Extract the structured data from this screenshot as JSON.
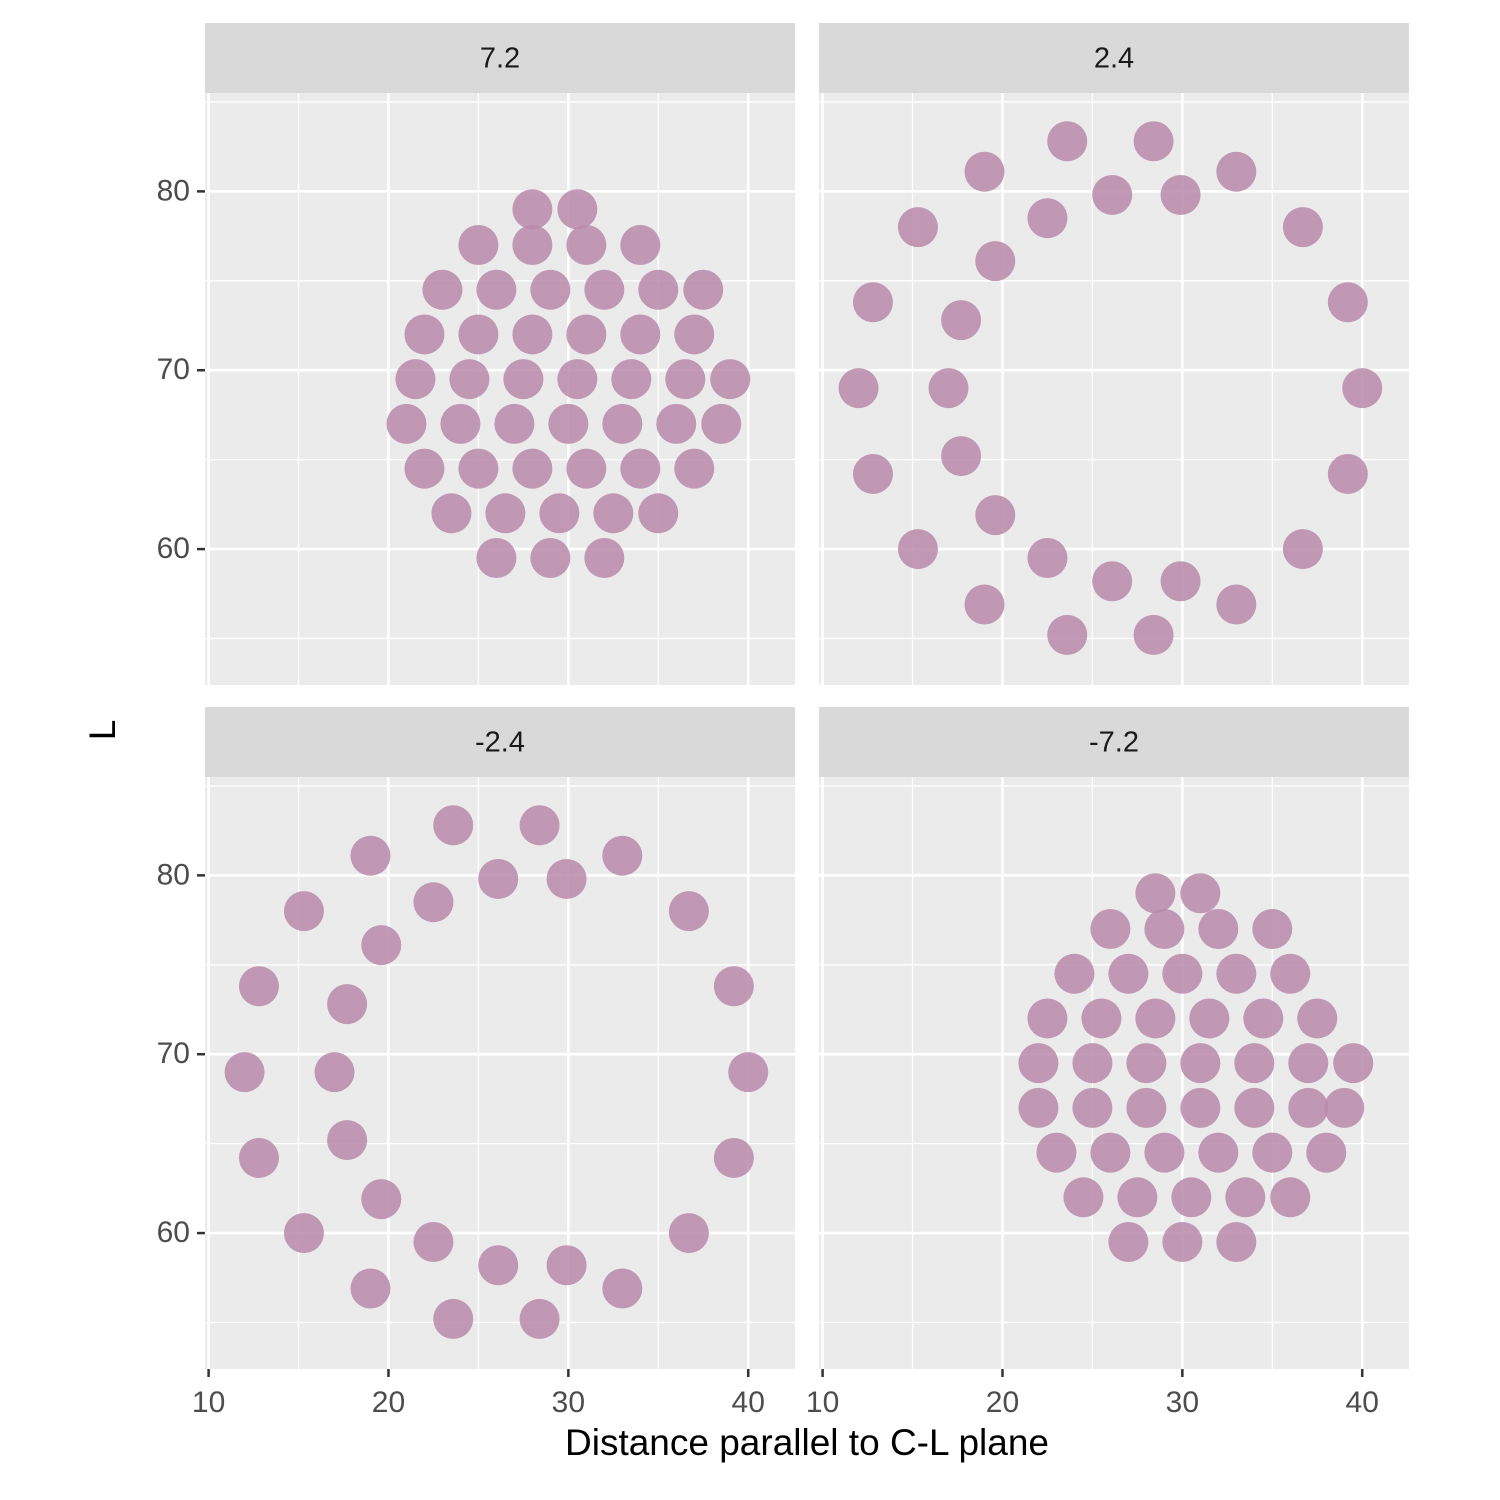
{
  "chart_data": {
    "type": "scatter",
    "x_label": "Distance parallel to C-L plane",
    "y_label": "L",
    "xlim": [
      9.8,
      42.6
    ],
    "xticks": [
      10,
      20,
      30,
      40
    ],
    "ylim": [
      52.4,
      85.5
    ],
    "yticks": [
      60,
      70,
      80
    ],
    "grid": true,
    "color": "#b98aaa",
    "facets": [
      {
        "label": "7.2",
        "x": [
          26,
          29,
          32,
          23.5,
          26.5,
          29.5,
          32.5,
          35,
          22,
          25,
          28,
          31,
          34,
          37,
          21,
          24,
          27,
          30,
          33,
          36,
          38.5,
          21.5,
          24.5,
          27.5,
          30.5,
          33.5,
          36.5,
          39,
          22,
          25,
          28,
          31,
          34,
          37,
          23,
          26,
          29,
          32,
          35,
          37.5,
          25,
          28,
          31,
          34,
          28,
          30.5
        ],
        "y": [
          59.5,
          59.5,
          59.5,
          62,
          62,
          62,
          62,
          62,
          64.5,
          64.5,
          64.5,
          64.5,
          64.5,
          64.5,
          67,
          67,
          67,
          67,
          67,
          67,
          67,
          69.5,
          69.5,
          69.5,
          69.5,
          69.5,
          69.5,
          69.5,
          72,
          72,
          72,
          72,
          72,
          72,
          74.5,
          74.5,
          74.5,
          74.5,
          74.5,
          74.5,
          77,
          77,
          77,
          77,
          79,
          79
        ]
      },
      {
        "label": "2.4",
        "x": [
          40,
          39.2,
          36.7,
          33,
          28.4,
          23.6,
          19,
          15.3,
          12.8,
          12,
          12.8,
          15.3,
          19,
          23.6,
          28.4,
          33,
          36.7,
          39.2,
          29.9,
          26.1,
          22.5,
          19.6,
          17.7,
          17,
          17.7,
          19.6,
          22.5,
          26.1,
          29.9
        ],
        "y": [
          69,
          73.8,
          78,
          81.1,
          82.8,
          82.8,
          81.1,
          78,
          73.8,
          69,
          64.2,
          60,
          56.9,
          55.2,
          55.2,
          56.9,
          60,
          64.2,
          79.8,
          79.8,
          78.5,
          76.1,
          72.8,
          69,
          65.2,
          61.9,
          59.5,
          58.2,
          58.2
        ]
      },
      {
        "label": "-2.4",
        "x": [
          40,
          39.2,
          36.7,
          33,
          28.4,
          23.6,
          19,
          15.3,
          12.8,
          12,
          12.8,
          15.3,
          19,
          23.6,
          28.4,
          33,
          36.7,
          39.2,
          29.9,
          26.1,
          22.5,
          19.6,
          17.7,
          17,
          17.7,
          19.6,
          22.5,
          26.1,
          29.9
        ],
        "y": [
          69,
          73.8,
          78,
          81.1,
          82.8,
          82.8,
          81.1,
          78,
          73.8,
          69,
          64.2,
          60,
          56.9,
          55.2,
          55.2,
          56.9,
          60,
          64.2,
          79.8,
          79.8,
          78.5,
          76.1,
          72.8,
          69,
          65.2,
          61.9,
          59.5,
          58.2,
          58.2
        ]
      },
      {
        "label": "-7.2",
        "x": [
          27,
          30,
          33,
          24.5,
          27.5,
          30.5,
          33.5,
          36,
          23,
          26,
          29,
          32,
          35,
          38,
          22,
          25,
          28,
          31,
          34,
          37,
          39,
          22,
          25,
          28,
          31,
          34,
          37,
          39.5,
          22.5,
          25.5,
          28.5,
          31.5,
          34.5,
          37.5,
          24,
          27,
          30,
          33,
          36,
          26,
          29,
          32,
          35,
          28.5,
          31
        ],
        "y": [
          59.5,
          59.5,
          59.5,
          62,
          62,
          62,
          62,
          62,
          64.5,
          64.5,
          64.5,
          64.5,
          64.5,
          64.5,
          67,
          67,
          67,
          67,
          67,
          67,
          67,
          69.5,
          69.5,
          69.5,
          69.5,
          69.5,
          69.5,
          69.5,
          72,
          72,
          72,
          72,
          72,
          72,
          74.5,
          74.5,
          74.5,
          74.5,
          74.5,
          77,
          77,
          77,
          77,
          79,
          79
        ]
      }
    ]
  }
}
